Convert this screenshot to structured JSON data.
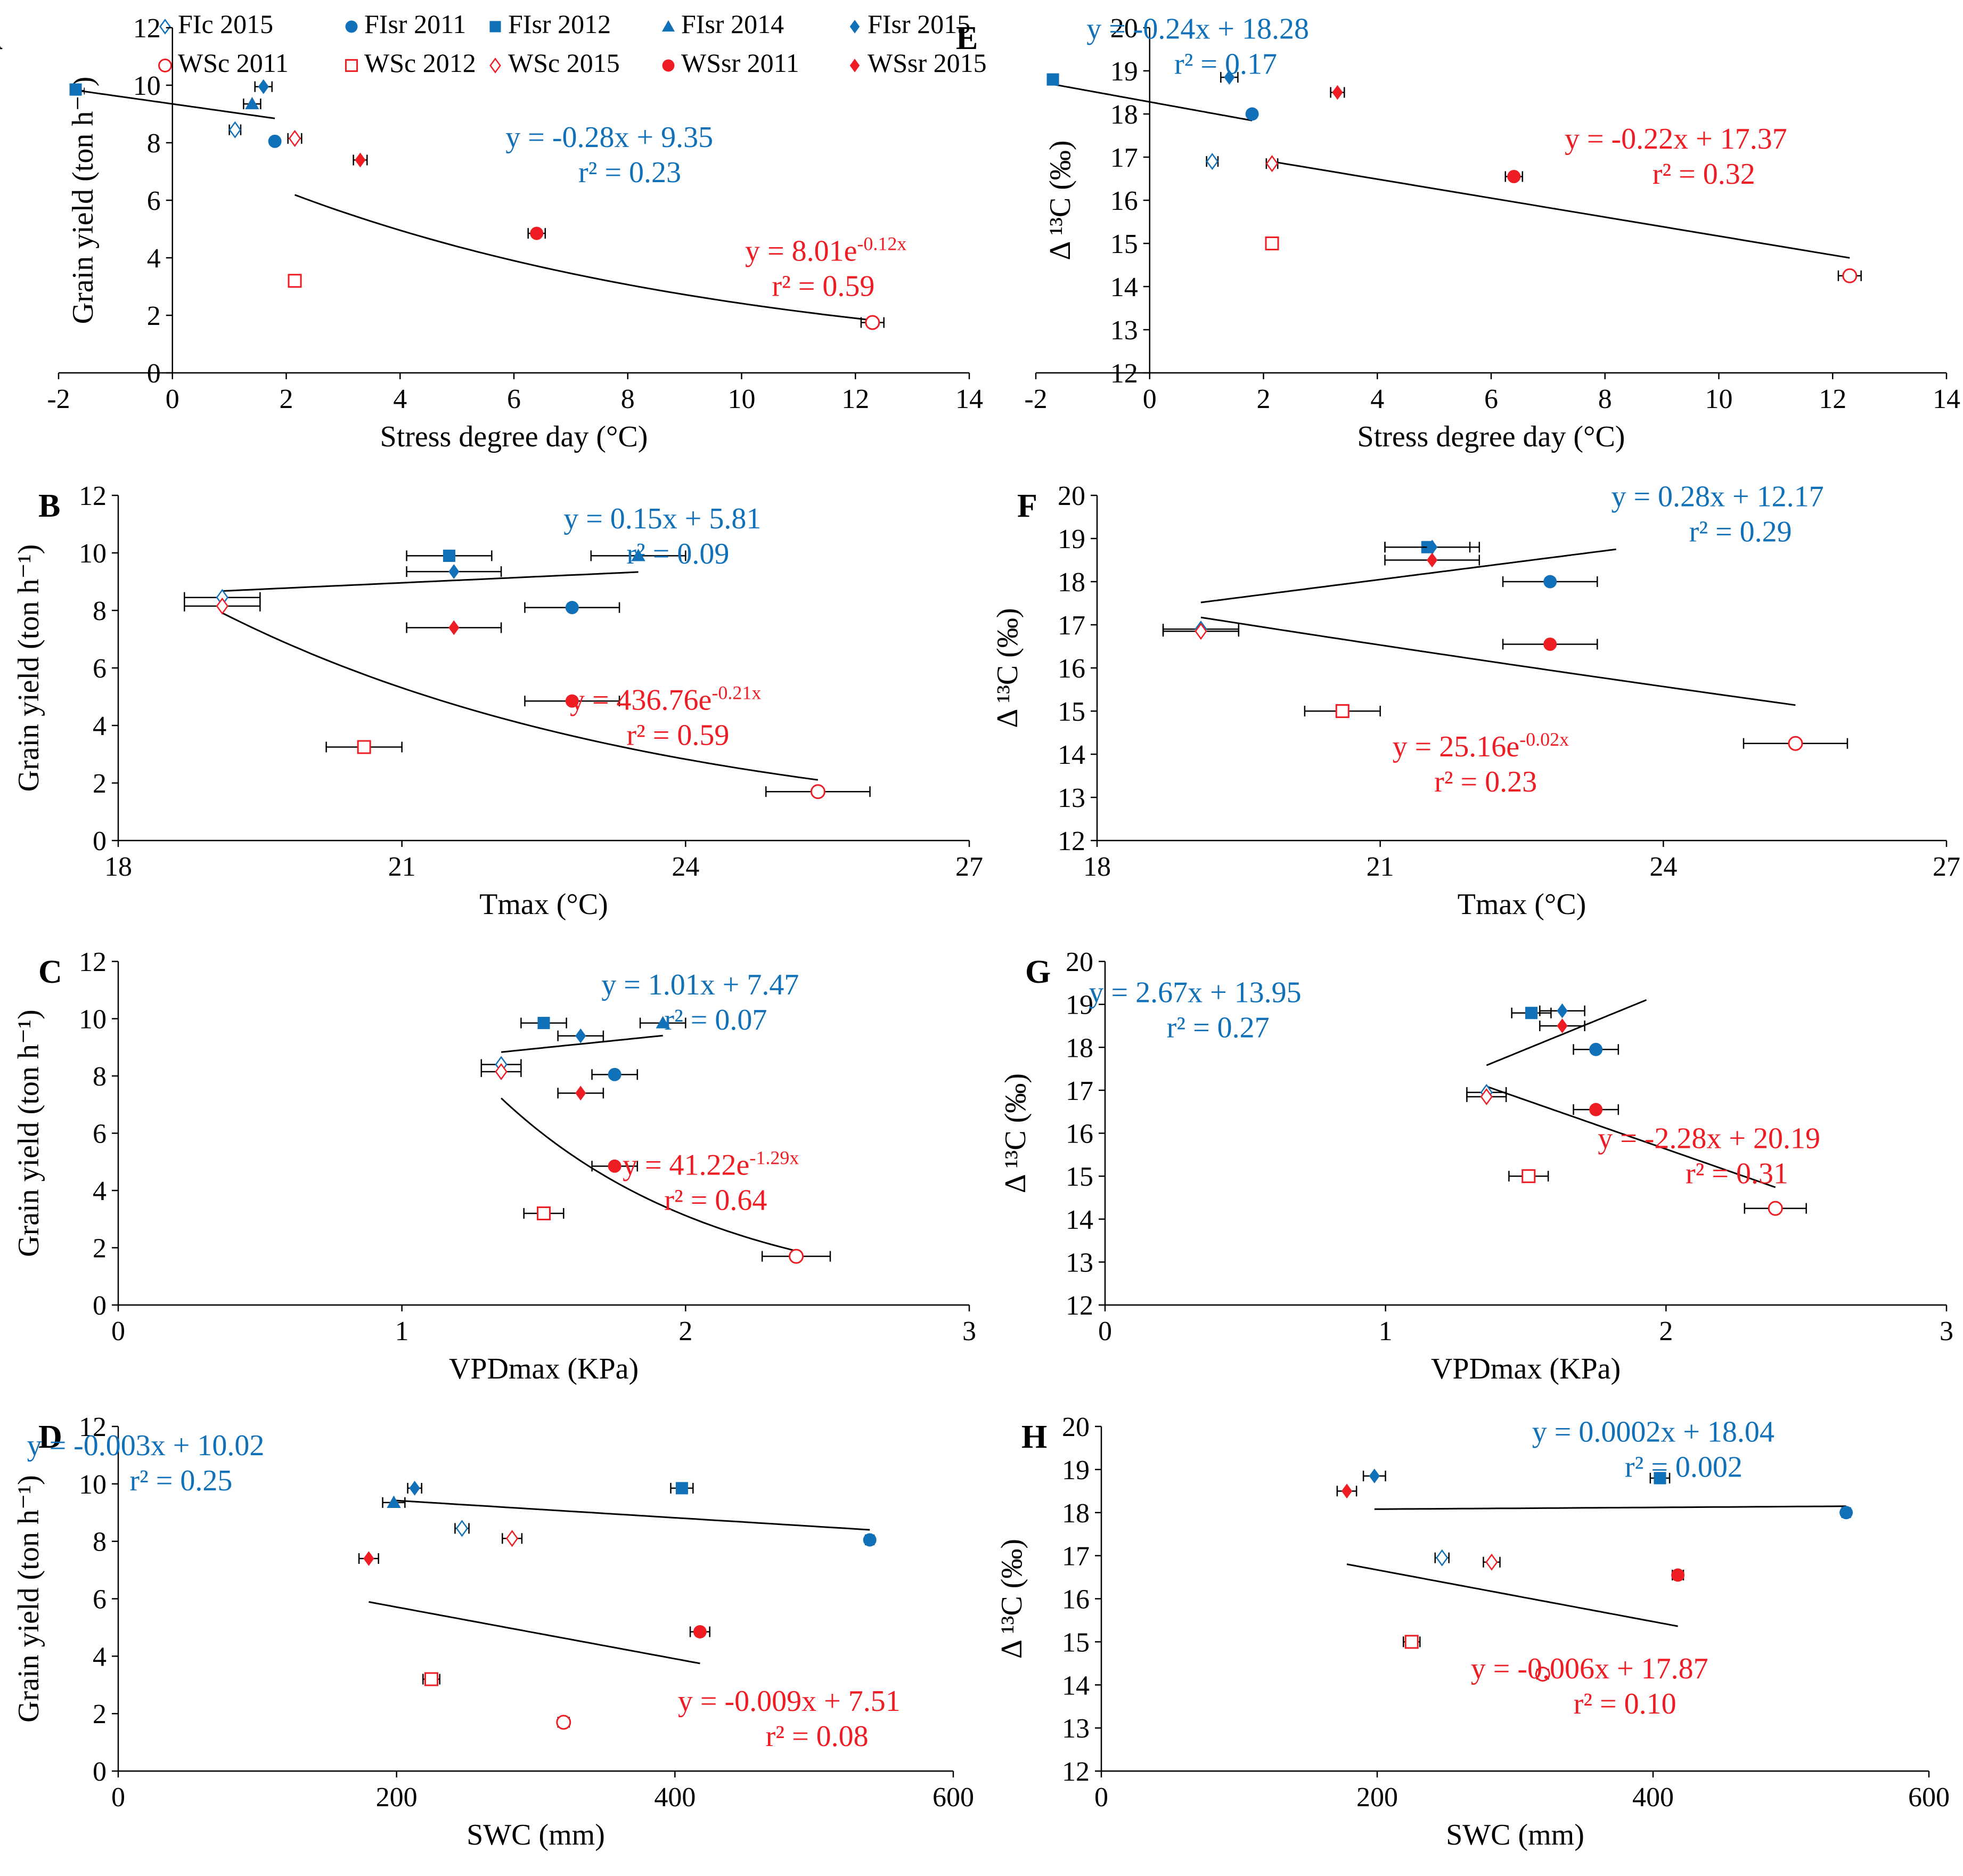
{
  "colors": {
    "blue": "#1070b8",
    "red": "#ee1d24",
    "axis": "#000000",
    "fit": "#000000"
  },
  "legend": [
    {
      "label": "FIc 2015",
      "marker": "diamond-open",
      "color": "blue"
    },
    {
      "label": "FIsr 2011",
      "marker": "circle",
      "color": "blue"
    },
    {
      "label": "FIsr 2012",
      "marker": "square",
      "color": "blue"
    },
    {
      "label": "FIsr 2014",
      "marker": "triangle",
      "color": "blue"
    },
    {
      "label": "FIsr 2015",
      "marker": "diamond",
      "color": "blue"
    },
    {
      "label": "WSc 2011",
      "marker": "circle-open",
      "color": "red"
    },
    {
      "label": "WSc 2012",
      "marker": "square-open",
      "color": "red"
    },
    {
      "label": "WSc 2015",
      "marker": "diamond-open",
      "color": "red"
    },
    {
      "label": "WSsr 2011",
      "marker": "circle",
      "color": "red"
    },
    {
      "label": "WSsr 2015",
      "marker": "diamond",
      "color": "red"
    }
  ],
  "chart_data": [
    {
      "id": "A",
      "type": "scatter",
      "xlabel": "Stress degree day (°C)",
      "ylabel": "Grain yield (ton h⁻¹)",
      "xlim": [
        -2,
        14
      ],
      "xticks": [
        -2,
        0,
        2,
        4,
        6,
        8,
        10,
        12,
        14
      ],
      "ylim": [
        0,
        12
      ],
      "yticks": [
        0,
        2,
        4,
        6,
        8,
        10,
        12
      ],
      "points": [
        {
          "s": "FIsr 2012",
          "x": -1.7,
          "y": 9.85,
          "ex": 0
        },
        {
          "s": "FIsr 2015",
          "x": 1.6,
          "y": 9.95,
          "ex": 0.15
        },
        {
          "s": "FIsr 2014",
          "x": 1.4,
          "y": 9.35,
          "ex": 0.15
        },
        {
          "s": "FIc 2015",
          "x": 1.1,
          "y": 8.45,
          "ex": 0.1
        },
        {
          "s": "FIsr 2011",
          "x": 1.8,
          "y": 8.05,
          "ex": 0
        },
        {
          "s": "WSc 2015",
          "x": 2.15,
          "y": 8.15,
          "ex": 0.12
        },
        {
          "s": "WSsr 2015",
          "x": 3.3,
          "y": 7.4,
          "ex": 0.12
        },
        {
          "s": "WSsr 2011",
          "x": 6.4,
          "y": 4.85,
          "ex": 0.15
        },
        {
          "s": "WSc 2012",
          "x": 2.15,
          "y": 3.2,
          "ex": 0.1
        },
        {
          "s": "WSc 2011",
          "x": 12.3,
          "y": 1.75,
          "ex": 0.2
        }
      ],
      "fits": [
        {
          "kind": "linear",
          "a": -0.28,
          "b": 9.35,
          "x0": -1.7,
          "x1": 1.8
        },
        {
          "kind": "exp",
          "a": 8.01,
          "b": -0.12,
          "x0": 2.15,
          "x1": 12.3
        }
      ],
      "equations": [
        {
          "eq": "y = -0.28x + 9.35",
          "r2": "r² = 0.23",
          "color": "blue",
          "ex": 9.5,
          "ey": 7.85
        },
        {
          "eq": "y = 8.01e",
          "sup": "-0.12x",
          "r2": "r² = 0.59",
          "color": "red",
          "ex": 12.9,
          "ey": 3.9
        }
      ]
    },
    {
      "id": "E",
      "type": "scatter",
      "xlabel": "Stress degree day (°C)",
      "ylabel": "Δ ¹³C (‰)",
      "xlim": [
        -2,
        14
      ],
      "xticks": [
        -2,
        0,
        2,
        4,
        6,
        8,
        10,
        12,
        14
      ],
      "ylim": [
        12,
        20
      ],
      "yticks": [
        12,
        13,
        14,
        15,
        16,
        17,
        18,
        19,
        20
      ],
      "points": [
        {
          "s": "FIsr 2012",
          "x": -1.7,
          "y": 18.8,
          "ex": 0
        },
        {
          "s": "FIsr 2015",
          "x": 1.4,
          "y": 18.85,
          "ex": 0.15
        },
        {
          "s": "FIsr 2011",
          "x": 1.8,
          "y": 18.0,
          "ex": 0
        },
        {
          "s": "FIc 2015",
          "x": 1.1,
          "y": 16.9,
          "ex": 0.1
        },
        {
          "s": "WSsr 2015",
          "x": 3.3,
          "y": 18.5,
          "ex": 0.12
        },
        {
          "s": "WSc 2015",
          "x": 2.15,
          "y": 16.85,
          "ex": 0.1
        },
        {
          "s": "WSsr 2011",
          "x": 6.4,
          "y": 16.55,
          "ex": 0.15
        },
        {
          "s": "WSc 2012",
          "x": 2.15,
          "y": 15.0,
          "ex": 0.1
        },
        {
          "s": "WSc 2011",
          "x": 12.3,
          "y": 14.25,
          "ex": 0.2
        }
      ],
      "fits": [
        {
          "kind": "linear",
          "a": -0.24,
          "b": 18.28,
          "x0": -1.7,
          "x1": 1.8
        },
        {
          "kind": "linear",
          "a": -0.22,
          "b": 17.37,
          "x0": 2.15,
          "x1": 12.3
        }
      ],
      "equations": [
        {
          "eq": "y = -0.24x + 18.28",
          "r2": "r² = 0.17",
          "color": "blue",
          "ex": 2.8,
          "ey": 19.75
        },
        {
          "eq": "y = -0.22x + 17.37",
          "r2": "r² = 0.32",
          "color": "red",
          "ex": 11.2,
          "ey": 17.2
        }
      ]
    },
    {
      "id": "B",
      "type": "scatter",
      "xlabel": "Tmax (°C)",
      "ylabel": "Grain yield (ton h⁻¹)",
      "xlim": [
        18,
        27
      ],
      "xticks": [
        18,
        21,
        24,
        27
      ],
      "ylim": [
        0,
        12
      ],
      "yticks": [
        0,
        2,
        4,
        6,
        8,
        10,
        12
      ],
      "points": [
        {
          "s": "FIsr 2012",
          "x": 21.5,
          "y": 9.9,
          "ex": 0.45
        },
        {
          "s": "FIsr 2015",
          "x": 21.55,
          "y": 9.35,
          "ex": 0.5
        },
        {
          "s": "FIsr 2014",
          "x": 23.5,
          "y": 9.9,
          "ex": 0.5
        },
        {
          "s": "FIc 2015",
          "x": 19.1,
          "y": 8.45,
          "ex": 0.4
        },
        {
          "s": "FIsr 2011",
          "x": 22.8,
          "y": 8.1,
          "ex": 0.5
        },
        {
          "s": "WSc 2015",
          "x": 19.1,
          "y": 8.15,
          "ex": 0.4
        },
        {
          "s": "WSsr 2015",
          "x": 21.55,
          "y": 7.4,
          "ex": 0.5
        },
        {
          "s": "WSsr 2011",
          "x": 22.8,
          "y": 4.85,
          "ex": 0.5
        },
        {
          "s": "WSc 2012",
          "x": 20.6,
          "y": 3.25,
          "ex": 0.4
        },
        {
          "s": "WSc 2011",
          "x": 25.4,
          "y": 1.7,
          "ex": 0.55
        }
      ],
      "fits": [
        {
          "kind": "linear",
          "a": 0.15,
          "b": 5.81,
          "x0": 19.1,
          "x1": 23.5
        },
        {
          "kind": "exp",
          "a": 436.76,
          "b": -0.21,
          "x0": 19.1,
          "x1": 25.4
        }
      ],
      "equations": [
        {
          "eq": "y = 0.15x + 5.81",
          "r2": "r² = 0.09",
          "color": "blue",
          "ex": 24.8,
          "ey": 10.85
        },
        {
          "eq": "y = 436.76e",
          "sup": "-0.21x",
          "r2": "r² = 0.59",
          "color": "red",
          "ex": 24.8,
          "ey": 4.55
        }
      ]
    },
    {
      "id": "F",
      "type": "scatter",
      "xlabel": "Tmax (°C)",
      "ylabel": "Δ ¹³C (‰)",
      "xlim": [
        18,
        27
      ],
      "xticks": [
        18,
        21,
        24,
        27
      ],
      "ylim": [
        12,
        20
      ],
      "yticks": [
        12,
        13,
        14,
        15,
        16,
        17,
        18,
        19,
        20
      ],
      "points": [
        {
          "s": "FIsr 2012",
          "x": 21.5,
          "y": 18.8,
          "ex": 0.45
        },
        {
          "s": "FIsr 2015",
          "x": 21.55,
          "y": 18.8,
          "ex": 0.5
        },
        {
          "s": "WSsr 2015",
          "x": 21.55,
          "y": 18.5,
          "ex": 0.5
        },
        {
          "s": "FIsr 2011",
          "x": 22.8,
          "y": 18.0,
          "ex": 0.5
        },
        {
          "s": "FIc 2015",
          "x": 19.1,
          "y": 16.9,
          "ex": 0.4
        },
        {
          "s": "WSc 2015",
          "x": 19.1,
          "y": 16.85,
          "ex": 0.4
        },
        {
          "s": "WSsr 2011",
          "x": 22.8,
          "y": 16.55,
          "ex": 0.5
        },
        {
          "s": "WSc 2012",
          "x": 20.6,
          "y": 15.0,
          "ex": 0.4
        },
        {
          "s": "WSc 2011",
          "x": 25.4,
          "y": 14.25,
          "ex": 0.55
        }
      ],
      "fits": [
        {
          "kind": "linear",
          "a": 0.28,
          "b": 12.17,
          "x0": 19.1,
          "x1": 23.5
        },
        {
          "kind": "exp",
          "a": 25.16,
          "b": -0.02,
          "x0": 19.1,
          "x1": 25.4
        }
      ],
      "equations": [
        {
          "eq": "y = 0.28x + 12.17",
          "r2": "r² = 0.29",
          "color": "blue",
          "ex": 25.7,
          "ey": 19.75
        },
        {
          "eq": "y = 25.16e",
          "sup": "-0.02x",
          "r2": "r² = 0.23",
          "color": "red",
          "ex": 23.0,
          "ey": 13.95
        }
      ]
    },
    {
      "id": "C",
      "type": "scatter",
      "xlabel": "VPDmax (KPa)",
      "ylabel": "Grain yield (ton h⁻¹)",
      "xlim": [
        0,
        3
      ],
      "xticks": [
        0,
        1,
        2,
        3
      ],
      "ylim": [
        0,
        12
      ],
      "yticks": [
        0,
        2,
        4,
        6,
        8,
        10,
        12
      ],
      "points": [
        {
          "s": "FIsr 2012",
          "x": 1.5,
          "y": 9.85,
          "ex": 0.08
        },
        {
          "s": "FIsr 2014",
          "x": 1.92,
          "y": 9.85,
          "ex": 0.08
        },
        {
          "s": "FIsr 2015",
          "x": 1.63,
          "y": 9.4,
          "ex": 0.08
        },
        {
          "s": "FIc 2015",
          "x": 1.35,
          "y": 8.4,
          "ex": 0.07
        },
        {
          "s": "WSc 2015",
          "x": 1.35,
          "y": 8.15,
          "ex": 0.07
        },
        {
          "s": "FIsr 2011",
          "x": 1.75,
          "y": 8.05,
          "ex": 0.08
        },
        {
          "s": "WSsr 2015",
          "x": 1.63,
          "y": 7.4,
          "ex": 0.08
        },
        {
          "s": "WSsr 2011",
          "x": 1.75,
          "y": 4.85,
          "ex": 0.08
        },
        {
          "s": "WSc 2012",
          "x": 1.5,
          "y": 3.2,
          "ex": 0.07
        },
        {
          "s": "WSc 2011",
          "x": 2.39,
          "y": 1.7,
          "ex": 0.12
        }
      ],
      "fits": [
        {
          "kind": "linear",
          "a": 1.01,
          "b": 7.47,
          "x0": 1.35,
          "x1": 1.92
        },
        {
          "kind": "exp",
          "a": 41.22,
          "b": -1.29,
          "x0": 1.35,
          "x1": 2.39
        }
      ],
      "equations": [
        {
          "eq": "y = 1.01x + 7.47",
          "r2": "r² = 0.07",
          "color": "blue",
          "ex": 2.4,
          "ey": 10.85
        },
        {
          "eq": "y = 41.22e",
          "sup": "-1.29x",
          "r2": "r² = 0.64",
          "color": "red",
          "ex": 2.4,
          "ey": 4.55
        }
      ]
    },
    {
      "id": "G",
      "type": "scatter",
      "xlabel": "VPDmax (KPa)",
      "ylabel": "Δ ¹³C (‰)",
      "xlim": [
        0,
        3
      ],
      "xticks": [
        0,
        1,
        2,
        3
      ],
      "ylim": [
        12,
        20
      ],
      "yticks": [
        12,
        13,
        14,
        15,
        16,
        17,
        18,
        19,
        20
      ],
      "points": [
        {
          "s": "FIsr 2012",
          "x": 1.52,
          "y": 18.8,
          "ex": 0.07
        },
        {
          "s": "FIsr 2015",
          "x": 1.63,
          "y": 18.85,
          "ex": 0.08
        },
        {
          "s": "WSsr 2015",
          "x": 1.63,
          "y": 18.5,
          "ex": 0.08
        },
        {
          "s": "FIsr 2011",
          "x": 1.75,
          "y": 17.95,
          "ex": 0.08
        },
        {
          "s": "FIc 2015",
          "x": 1.36,
          "y": 16.95,
          "ex": 0.07
        },
        {
          "s": "WSc 2015",
          "x": 1.36,
          "y": 16.85,
          "ex": 0.07
        },
        {
          "s": "WSsr 2011",
          "x": 1.75,
          "y": 16.55,
          "ex": 0.08
        },
        {
          "s": "WSc 2012",
          "x": 1.51,
          "y": 15.0,
          "ex": 0.07
        },
        {
          "s": "WSc 2011",
          "x": 2.39,
          "y": 14.25,
          "ex": 0.11
        }
      ],
      "fits": [
        {
          "kind": "linear",
          "a": 2.67,
          "b": 13.95,
          "x0": 1.36,
          "x1": 1.93
        },
        {
          "kind": "linear",
          "a": -2.28,
          "b": 20.19,
          "x0": 1.36,
          "x1": 2.39
        }
      ],
      "equations": [
        {
          "eq": "y = 2.67x + 13.95",
          "r2": "r² = 0.27",
          "color": "blue",
          "ex": 0.7,
          "ey": 19.05
        },
        {
          "eq": "y = -2.28x + 20.19",
          "r2": "r² = 0.31",
          "color": "red",
          "ex": 2.55,
          "ey": 15.65
        }
      ]
    },
    {
      "id": "D",
      "type": "scatter",
      "xlabel": "SWC (mm)",
      "ylabel": "Grain yield (ton h⁻¹)",
      "xlim": [
        0,
        600
      ],
      "xticks": [
        0,
        200,
        400,
        600
      ],
      "ylim": [
        0,
        12
      ],
      "yticks": [
        0,
        2,
        4,
        6,
        8,
        10,
        12
      ],
      "points": [
        {
          "s": "FIsr 2012",
          "x": 405,
          "y": 9.85,
          "ex": 8
        },
        {
          "s": "FIsr 2015",
          "x": 213,
          "y": 9.85,
          "ex": 5
        },
        {
          "s": "FIsr 2014",
          "x": 198,
          "y": 9.35,
          "ex": 8
        },
        {
          "s": "FIc 2015",
          "x": 247,
          "y": 8.45,
          "ex": 5
        },
        {
          "s": "FIsr 2011",
          "x": 540,
          "y": 8.05,
          "ex": 3
        },
        {
          "s": "WSc 2015",
          "x": 283,
          "y": 8.1,
          "ex": 7
        },
        {
          "s": "WSsr 2015",
          "x": 180,
          "y": 7.4,
          "ex": 7
        },
        {
          "s": "WSsr 2011",
          "x": 418,
          "y": 4.85,
          "ex": 7
        },
        {
          "s": "WSc 2012",
          "x": 225,
          "y": 3.2,
          "ex": 6
        },
        {
          "s": "WSc 2011",
          "x": 320,
          "y": 1.7,
          "ex": 4
        }
      ],
      "fits": [
        {
          "kind": "linear",
          "a": -0.003,
          "b": 10.02,
          "x0": 198,
          "x1": 540
        },
        {
          "kind": "linear",
          "a": -0.009,
          "b": 7.51,
          "x0": 180,
          "x1": 418
        }
      ],
      "equations": [
        {
          "eq": "y = -0.003x + 10.02",
          "r2": "r² = 0.25",
          "color": "blue",
          "ex": 105,
          "ey": 11.0
        },
        {
          "eq": "y = -0.009x + 7.51",
          "r2": "r² = 0.08",
          "color": "red",
          "ex": 562,
          "ey": 2.1
        }
      ]
    },
    {
      "id": "H",
      "type": "scatter",
      "xlabel": "SWC (mm)",
      "ylabel": "Δ ¹³C (‰)",
      "xlim": [
        0,
        600
      ],
      "xticks": [
        0,
        200,
        400,
        600
      ],
      "ylim": [
        12,
        20
      ],
      "yticks": [
        12,
        13,
        14,
        15,
        16,
        17,
        18,
        19,
        20
      ],
      "points": [
        {
          "s": "FIsr 2015",
          "x": 198,
          "y": 18.85,
          "ex": 8
        },
        {
          "s": "FIsr 2012",
          "x": 405,
          "y": 18.8,
          "ex": 7
        },
        {
          "s": "WSsr 2015",
          "x": 178,
          "y": 18.5,
          "ex": 7
        },
        {
          "s": "FIsr 2011",
          "x": 540,
          "y": 18.0,
          "ex": 3
        },
        {
          "s": "FIc 2015",
          "x": 247,
          "y": 16.95,
          "ex": 5
        },
        {
          "s": "WSc 2015",
          "x": 283,
          "y": 16.85,
          "ex": 6
        },
        {
          "s": "WSsr 2011",
          "x": 418,
          "y": 16.55,
          "ex": 4
        },
        {
          "s": "WSc 2012",
          "x": 225,
          "y": 15.0,
          "ex": 6
        },
        {
          "s": "WSc 2011",
          "x": 320,
          "y": 14.25,
          "ex": 4
        }
      ],
      "fits": [
        {
          "kind": "linear",
          "a": 0.0002,
          "b": 18.04,
          "x0": 198,
          "x1": 540
        },
        {
          "kind": "linear",
          "a": -0.006,
          "b": 17.87,
          "x0": 178,
          "x1": 418
        }
      ],
      "equations": [
        {
          "eq": "y = 0.0002x + 18.04",
          "r2": "r² = 0.002",
          "color": "blue",
          "ex": 488,
          "ey": 19.65
        },
        {
          "eq": "y = -0.006x + 17.87",
          "r2": "r² = 0.10",
          "color": "red",
          "ex": 440,
          "ey": 14.15
        }
      ]
    }
  ]
}
